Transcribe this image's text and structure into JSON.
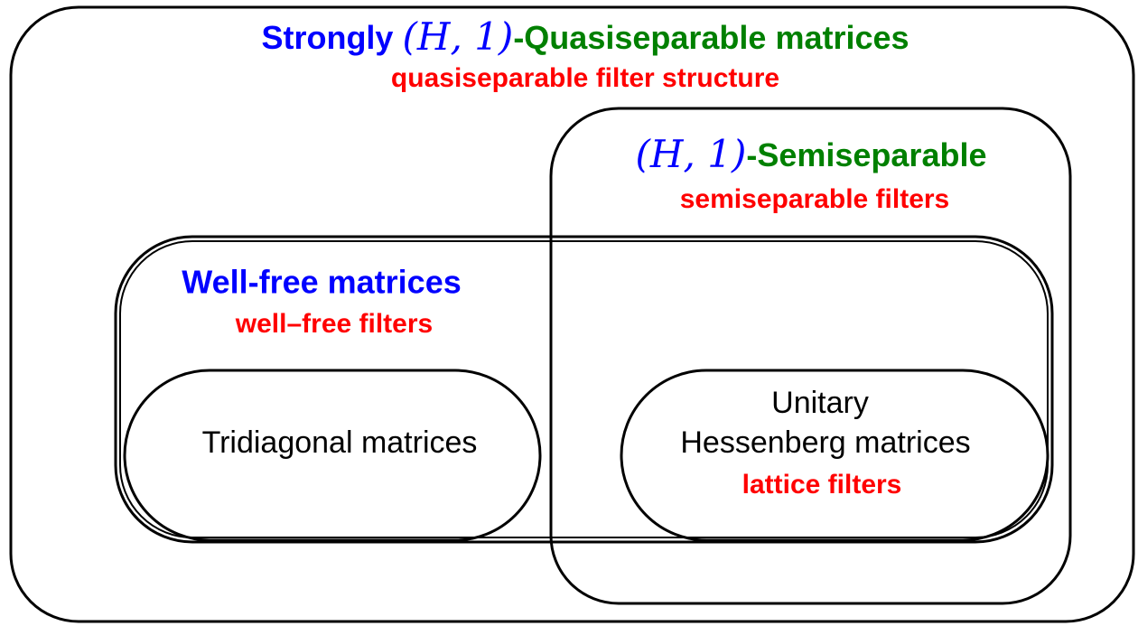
{
  "outer": {
    "prefix": "Strongly",
    "math": "(H, 1)",
    "suffix": "-Quasiseparable matrices",
    "filter": "quasiseparable filter structure"
  },
  "semiseparable": {
    "math": "(H, 1)",
    "suffix": "-Semiseparable",
    "filter": "semiseparable filters"
  },
  "well_free": {
    "title": "Well-free matrices",
    "filter": "well–free filters"
  },
  "tridiagonal": {
    "title": "Tridiagonal matrices"
  },
  "unitary": {
    "line1": "Unitary",
    "line2": "Hessenberg matrices",
    "filter": "lattice filters"
  }
}
